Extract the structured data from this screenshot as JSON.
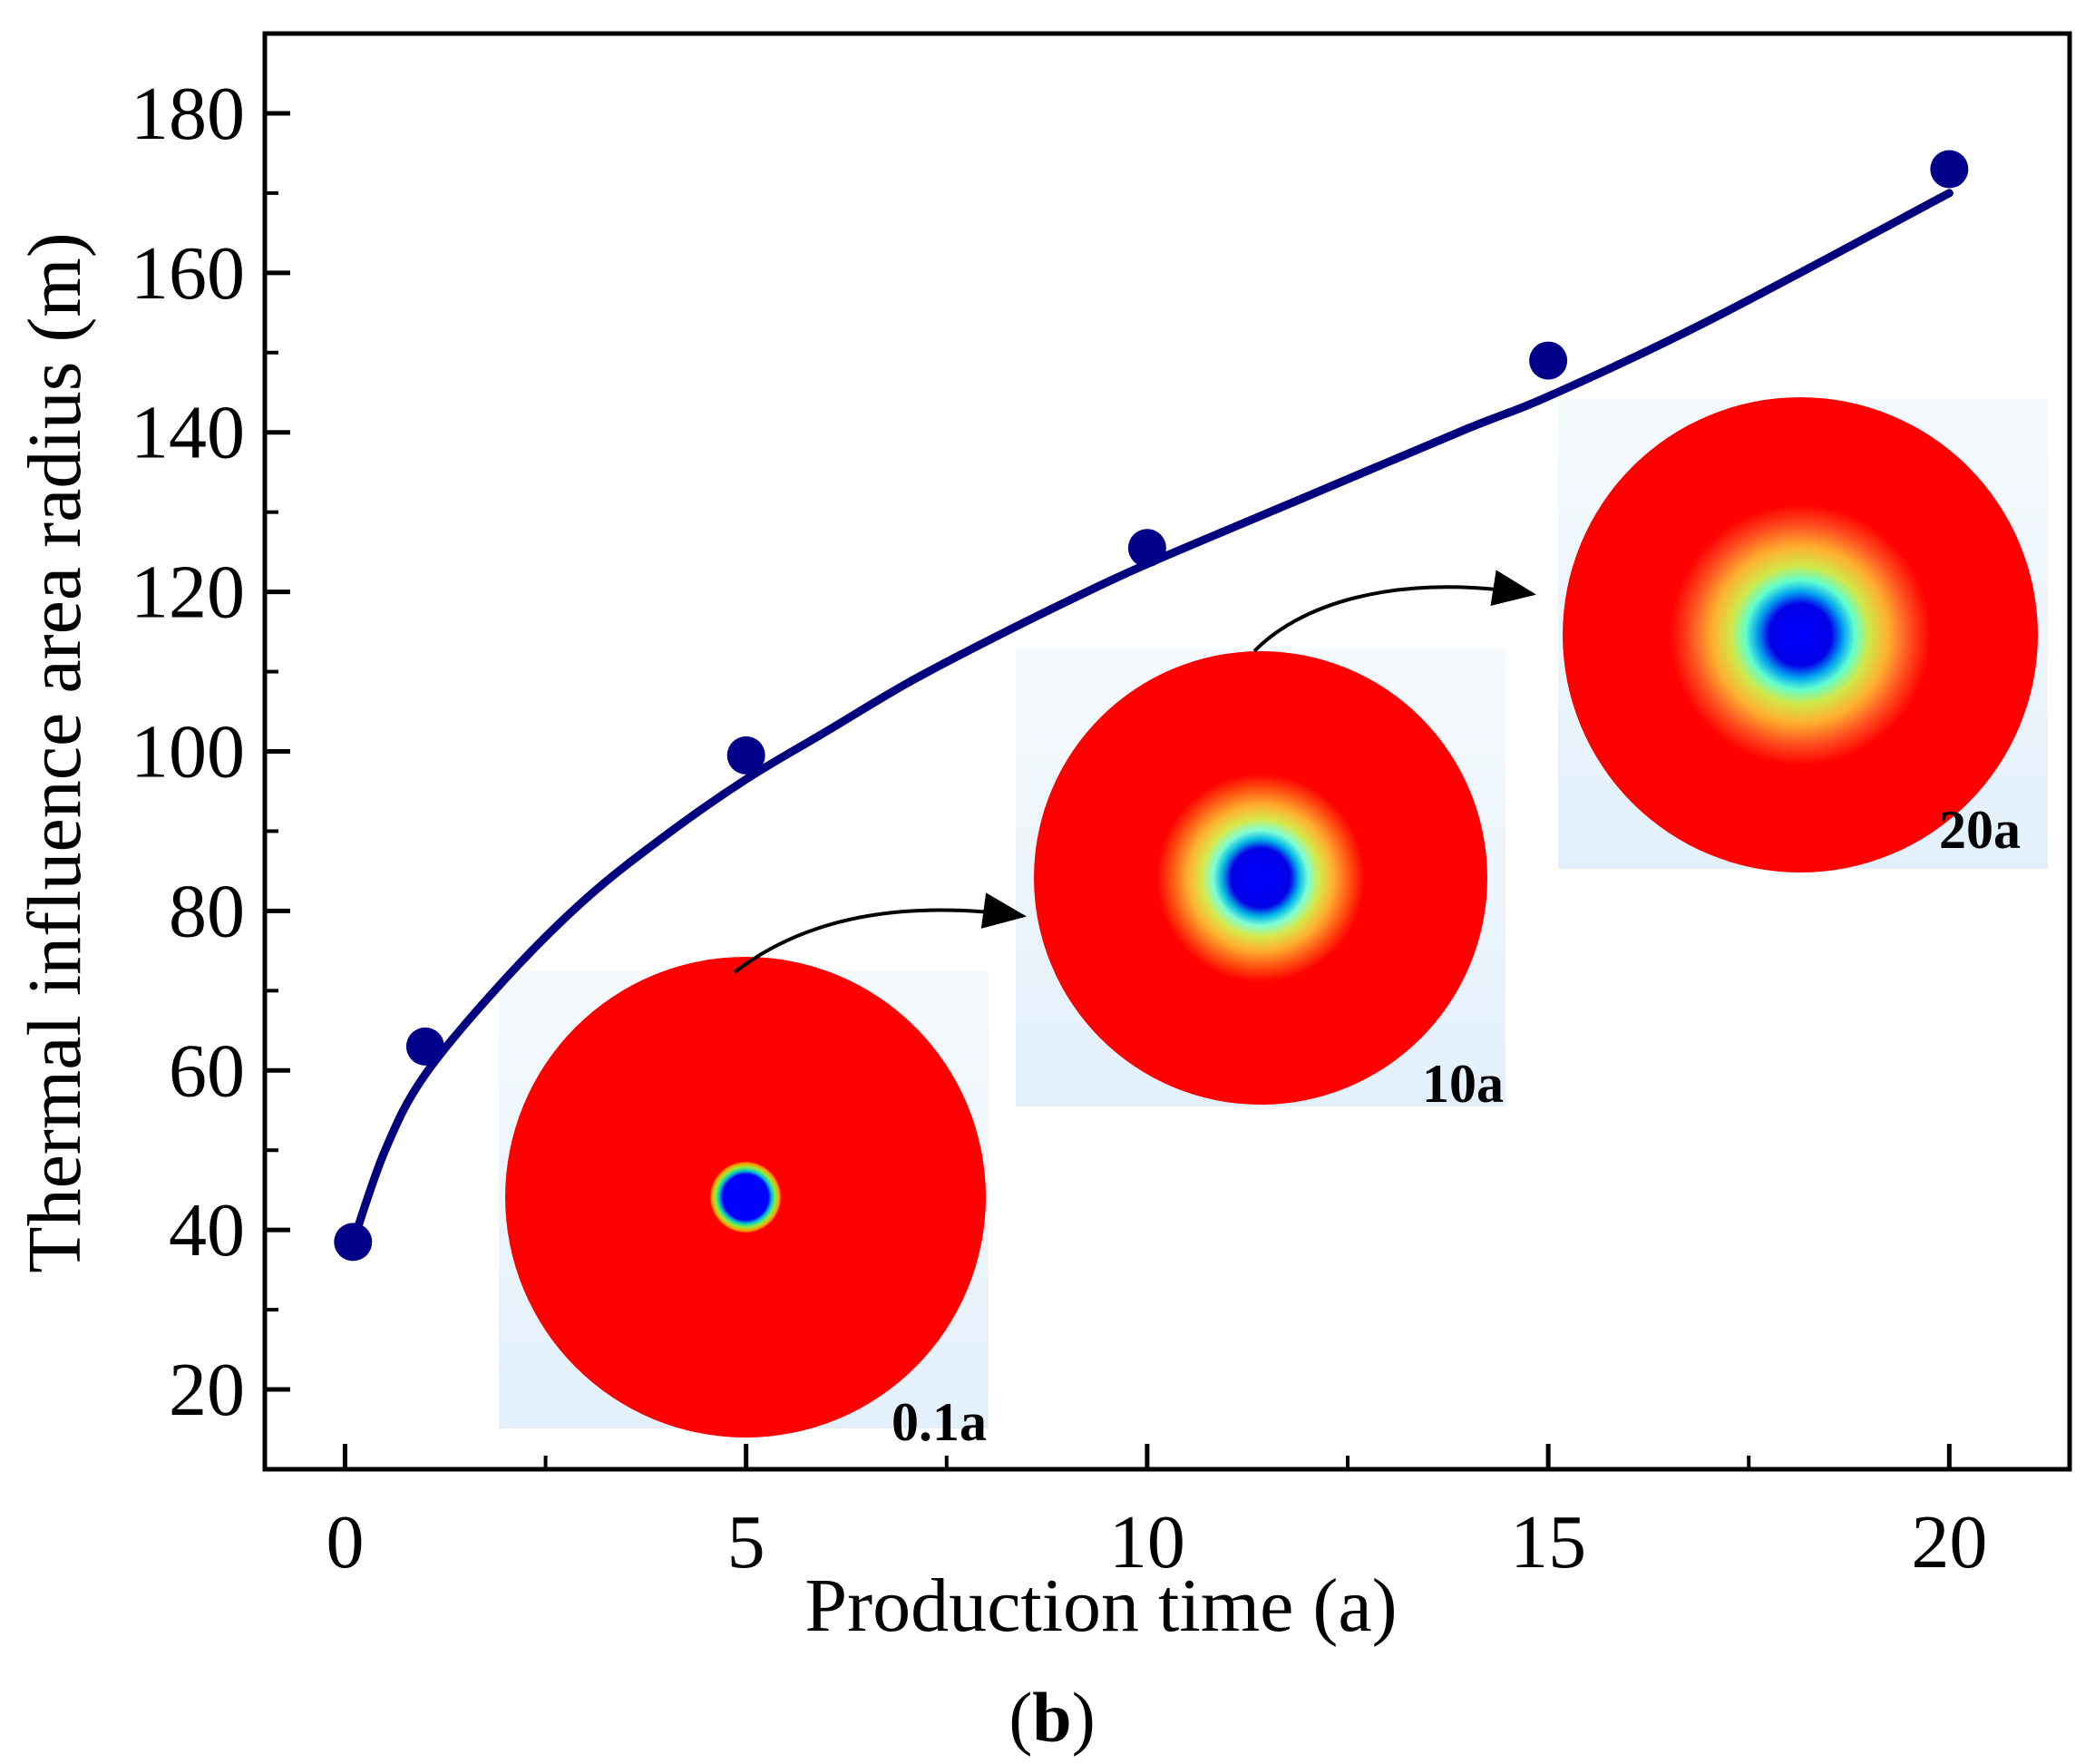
{
  "chart_data": {
    "type": "scatter",
    "title": "",
    "xlabel": "Production time (a)",
    "ylabel": "Thermal influence area radius (m)",
    "panel_label": "b",
    "xlim": [
      -1,
      21.5
    ],
    "ylim": [
      10,
      190
    ],
    "xticks": [
      0,
      5,
      10,
      15,
      20
    ],
    "yticks": [
      20,
      40,
      60,
      80,
      100,
      120,
      140,
      160,
      180
    ],
    "series": [
      {
        "name": "Thermal influence area radius",
        "x": [
          0.1,
          1,
          5,
          10,
          15,
          20
        ],
        "y": [
          38.5,
          63,
          99.5,
          125.5,
          149,
          173
        ],
        "marker_color": "#00008b",
        "line_color": "#00007f"
      }
    ],
    "fit_curve": {
      "description": "smooth fitted curve through the points",
      "x": [
        0.1,
        0.5,
        1,
        2,
        3,
        4,
        5,
        6,
        7,
        8,
        9,
        10,
        12,
        14,
        15,
        17,
        20
      ],
      "y": [
        38.5,
        50,
        59.5,
        71.5,
        81.5,
        89.5,
        96.5,
        102.5,
        108.5,
        113.8,
        118.8,
        123.5,
        132,
        140.5,
        144.5,
        154,
        170
      ]
    },
    "insets": [
      {
        "label": "0.1a",
        "core_scale": 0.08
      },
      {
        "label": "10a",
        "core_scale": 0.25
      },
      {
        "label": "20a",
        "core_scale": 0.5
      }
    ]
  },
  "colors": {
    "axis": "#000000",
    "inset_background": "#eef6fc",
    "disk_red": "#ff0000",
    "core_blue": "#0000ff"
  }
}
